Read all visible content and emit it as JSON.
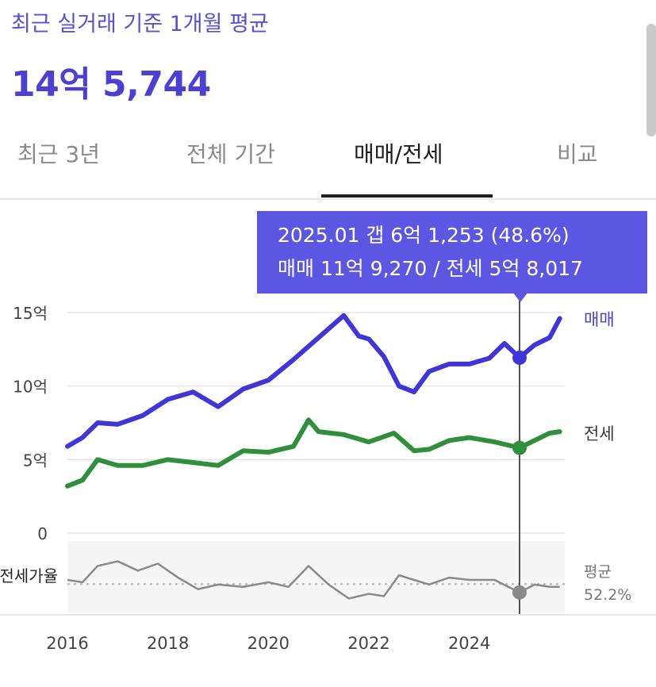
{
  "header": {
    "subtitle": "최근 실거래 기준 1개월 평균",
    "price": "14억 5,744"
  },
  "tabs": [
    {
      "label": "최근 3년",
      "active": false
    },
    {
      "label": "전체 기간",
      "active": false
    },
    {
      "label": "매매/전세",
      "active": true
    },
    {
      "label": "비교",
      "active": false
    }
  ],
  "tooltip": {
    "line1": "2025.01  갭 6억 1,253 (48.6%)",
    "line2": "매매 11억 9,270 / 전세 5억 8,017"
  },
  "colors": {
    "sale": "#3f36d8",
    "jeonse": "#2f8f3a",
    "ratio": "#8a8a8a",
    "tooltip": "#5b57e2"
  },
  "chart_data": {
    "type": "line",
    "unit": "억",
    "x_ticks": [
      "2016",
      "2018",
      "2020",
      "2022",
      "2024"
    ],
    "x_range": [
      2016.0,
      2025.9
    ],
    "y_ticks": [
      {
        "value": 15,
        "label": "15억"
      },
      {
        "value": 10,
        "label": "10억"
      },
      {
        "value": 5,
        "label": "5억"
      },
      {
        "value": 0,
        "label": "0"
      }
    ],
    "ylim": [
      0,
      15
    ],
    "series": [
      {
        "name": "매매",
        "x": [
          2016.0,
          2016.3,
          2016.6,
          2017.0,
          2017.5,
          2018.0,
          2018.5,
          2019.0,
          2019.5,
          2020.0,
          2020.5,
          2021.0,
          2021.5,
          2021.8,
          2022.0,
          2022.3,
          2022.6,
          2022.9,
          2023.2,
          2023.6,
          2024.0,
          2024.4,
          2024.7,
          2025.0,
          2025.3,
          2025.6,
          2025.8
        ],
        "values": [
          5.9,
          6.5,
          7.5,
          7.4,
          8.0,
          9.1,
          9.6,
          8.6,
          9.8,
          10.4,
          11.8,
          13.3,
          14.8,
          13.4,
          13.2,
          12.0,
          10.0,
          9.6,
          11.0,
          11.5,
          11.5,
          11.9,
          12.9,
          11.93,
          12.8,
          13.3,
          14.6
        ]
      },
      {
        "name": "전세",
        "x": [
          2016.0,
          2016.3,
          2016.6,
          2017.0,
          2017.5,
          2018.0,
          2018.5,
          2019.0,
          2019.5,
          2020.0,
          2020.5,
          2020.8,
          2021.0,
          2021.5,
          2022.0,
          2022.5,
          2022.9,
          2023.2,
          2023.6,
          2024.0,
          2024.5,
          2025.0,
          2025.3,
          2025.6,
          2025.8
        ],
        "values": [
          3.2,
          3.6,
          5.0,
          4.6,
          4.6,
          5.0,
          4.8,
          4.6,
          5.6,
          5.5,
          5.9,
          7.7,
          6.9,
          6.7,
          6.2,
          6.8,
          5.6,
          5.7,
          6.3,
          6.5,
          6.2,
          5.8,
          6.3,
          6.8,
          6.9
        ]
      }
    ],
    "ratio": {
      "label": "전세가율",
      "average_label": "평균",
      "average_value": "52.2%",
      "x": [
        2016.0,
        2016.3,
        2016.6,
        2017.0,
        2017.4,
        2017.8,
        2018.2,
        2018.6,
        2019.0,
        2019.5,
        2020.0,
        2020.4,
        2020.8,
        2021.2,
        2021.6,
        2022.0,
        2022.3,
        2022.6,
        2022.9,
        2023.2,
        2023.6,
        2024.0,
        2024.5,
        2025.0,
        2025.3,
        2025.6,
        2025.8
      ],
      "values": [
        54,
        53,
        60,
        62,
        58,
        61,
        55,
        50,
        52,
        51,
        53,
        51,
        60,
        52,
        46,
        48,
        47,
        56,
        54,
        52,
        55,
        54,
        54,
        48.6,
        52,
        51,
        51
      ]
    },
    "selected": {
      "x": 2025.0,
      "label": "2025.01"
    }
  }
}
